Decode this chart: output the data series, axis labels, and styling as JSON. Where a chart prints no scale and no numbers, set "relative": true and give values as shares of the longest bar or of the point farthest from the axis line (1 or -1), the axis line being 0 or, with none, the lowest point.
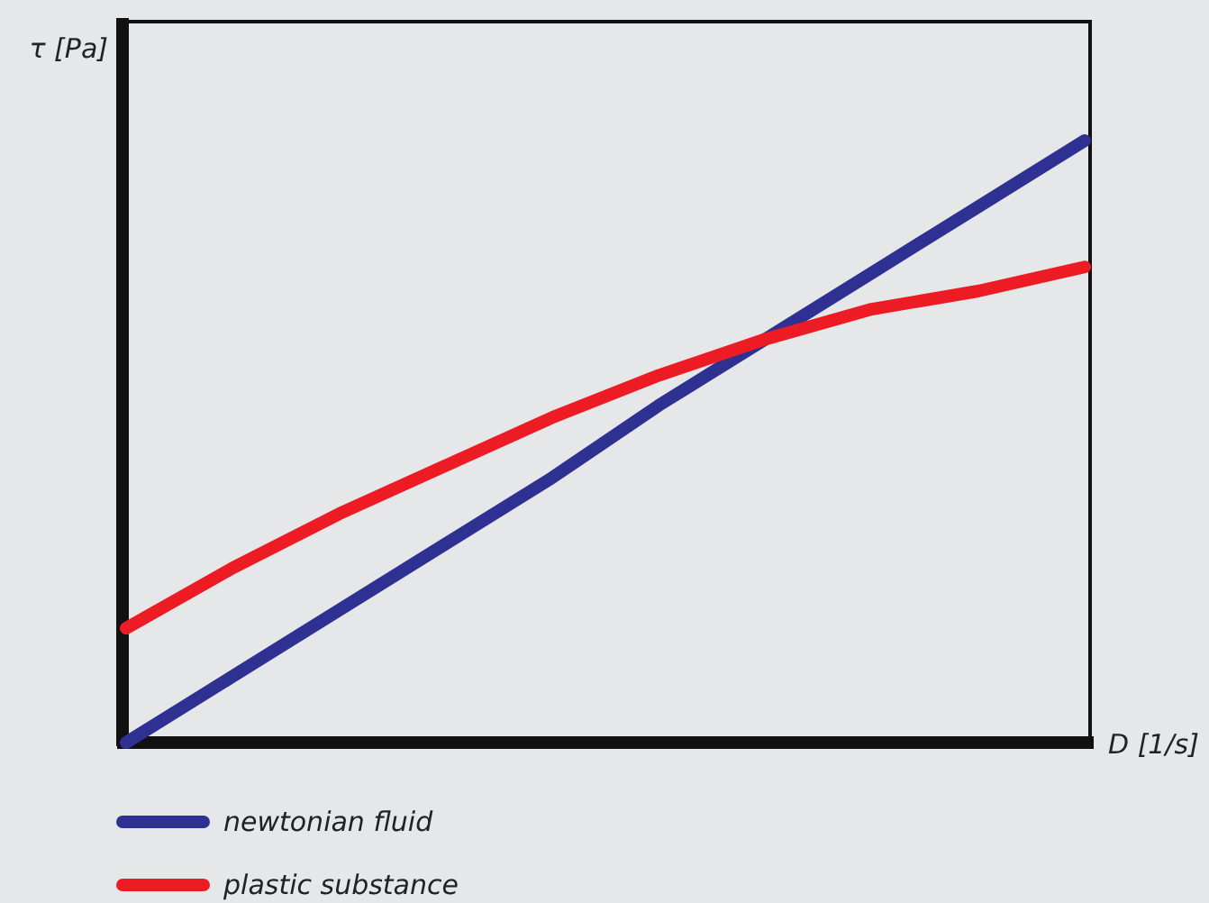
{
  "chart_data": {
    "type": "line",
    "relative": true,
    "xlabel": "D [1/s]",
    "ylabel": "τ [Pa]",
    "categories": [
      null,
      null,
      null,
      null,
      null,
      null,
      null,
      null,
      null,
      null
    ],
    "series": [
      {
        "name": "newtonian fluid",
        "color": "#2e3192",
        "values": [
          0,
          0.11,
          0.22,
          0.33,
          0.44,
          0.56,
          0.67,
          0.78,
          0.89,
          1
        ]
      },
      {
        "name": "plastic substance",
        "color": "#ed1c24",
        "values": [
          0.19,
          0.29,
          0.38,
          0.46,
          0.54,
          0.61,
          0.67,
          0.72,
          0.75,
          0.79
        ]
      }
    ],
    "legend": "bottom",
    "marker": "none",
    "line_style": "solid"
  }
}
